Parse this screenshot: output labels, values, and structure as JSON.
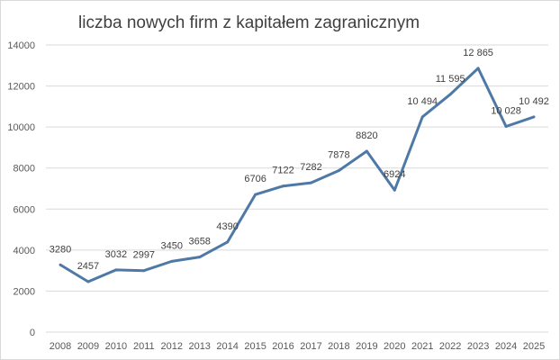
{
  "chart_data": {
    "type": "line",
    "title": "liczba nowych firm z kapitałem zagranicznym",
    "xlabel": "",
    "ylabel": "",
    "categories": [
      "2008",
      "2009",
      "2010",
      "2011",
      "2012",
      "2013",
      "2014",
      "2015",
      "2016",
      "2017",
      "2018",
      "2019",
      "2020",
      "2021",
      "2022",
      "2023",
      "2024",
      "2025"
    ],
    "series": [
      {
        "values": [
          3280,
          2457,
          3032,
          2997,
          3450,
          3658,
          4390,
          6706,
          7122,
          7282,
          7878,
          8820,
          6924,
          10494,
          11595,
          12865,
          10028,
          10492
        ],
        "data_labels": [
          "3280",
          "2457",
          "3032",
          "2997",
          "3450",
          "3658",
          "4390",
          "6706",
          "7122",
          "7282",
          "7878",
          "8820",
          "6924",
          "10 494",
          "11 595",
          "12 865",
          "10 028",
          "10 492"
        ],
        "color": "#4e79a7"
      }
    ],
    "ylim": [
      0,
      14000
    ],
    "yticks": [
      "0",
      "2000",
      "4000",
      "6000",
      "8000",
      "10000",
      "12000",
      "14000"
    ],
    "grid": true,
    "legend": "none"
  }
}
